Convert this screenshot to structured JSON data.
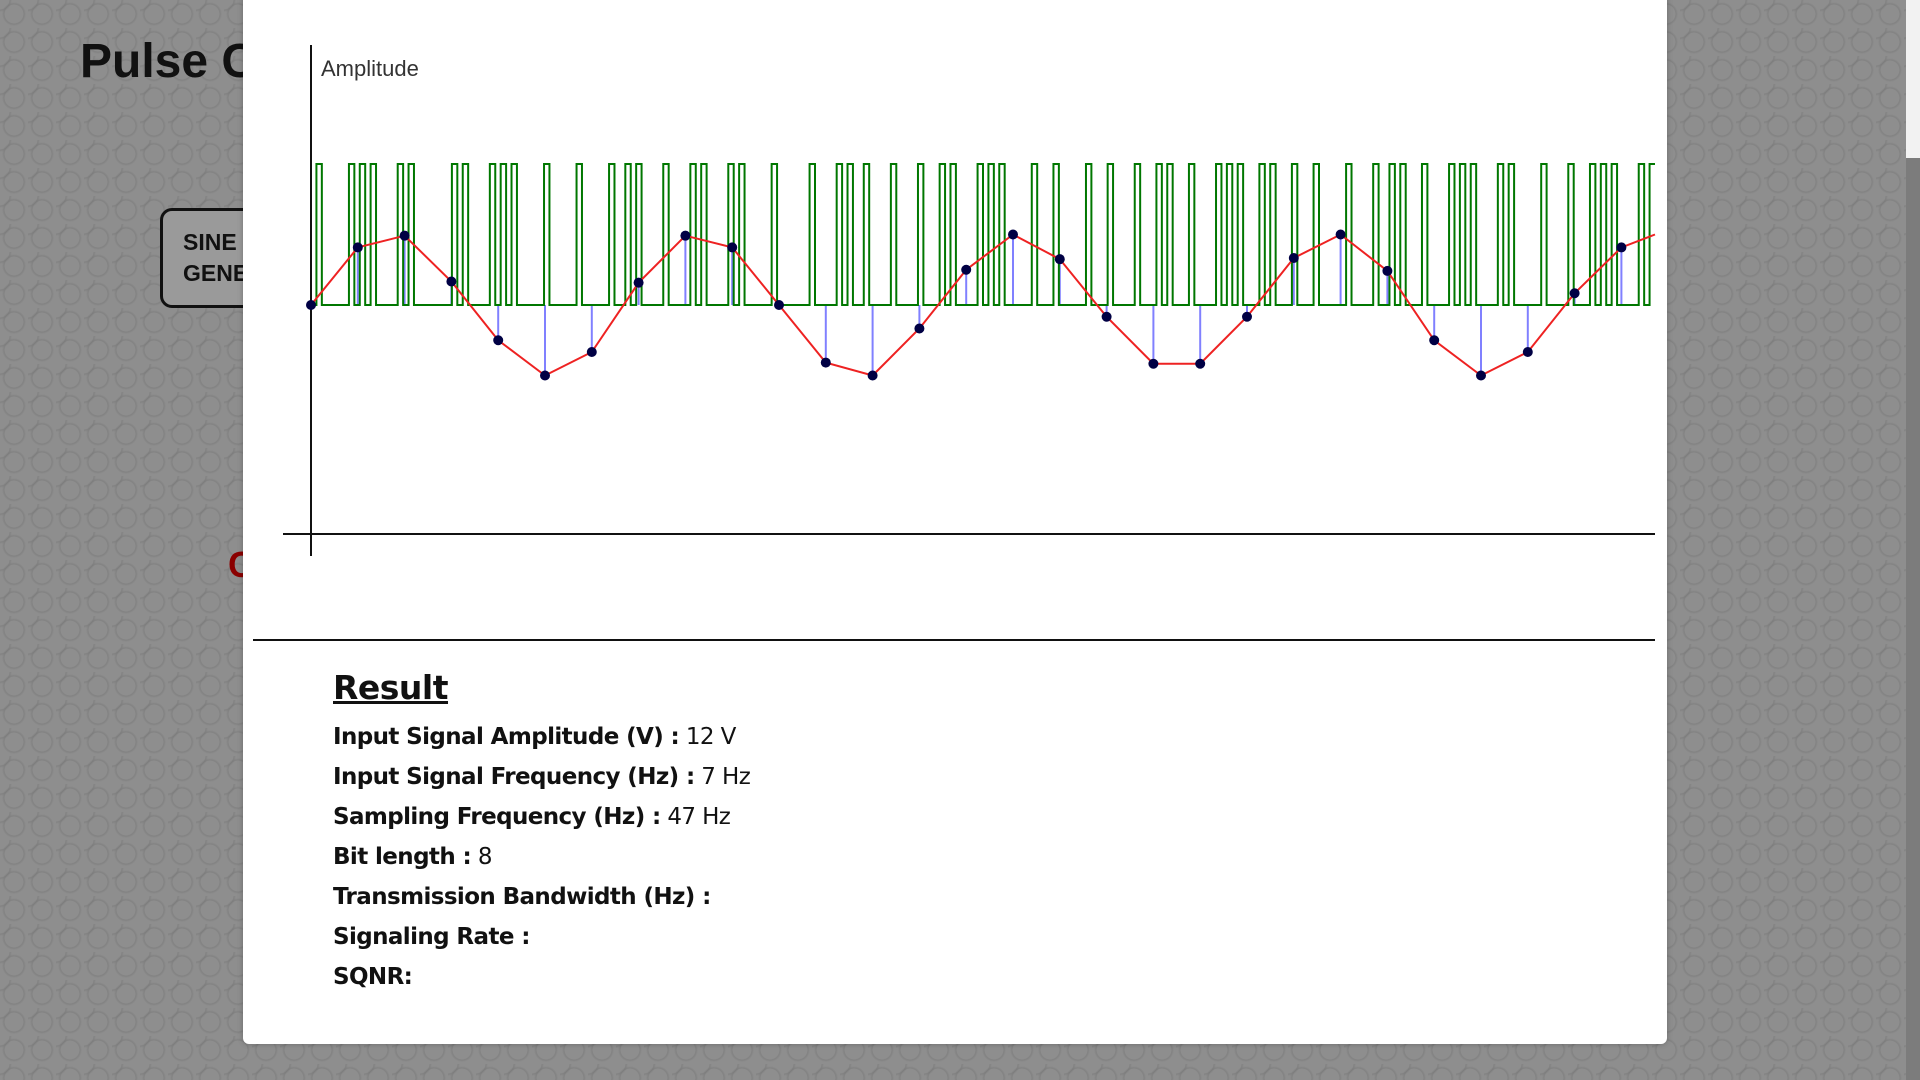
{
  "page": {
    "title": "Pulse C",
    "gen_button": {
      "line1": "SINE",
      "line2": "GENE"
    },
    "red_glyph": "C"
  },
  "colors": {
    "pcm_wave": "#007700",
    "sine_curve": "#ee2222",
    "sample_stem": "#8080ff",
    "sample_dot": "#000044",
    "axis": "#111111"
  },
  "chart_data": {
    "type": "line",
    "ylabel": "Amplitude",
    "ylim": [
      -12,
      12
    ],
    "grid": false,
    "series": [
      {
        "kind": "sampled",
        "values": [
          0,
          4.9,
          5.9,
          2.0,
          -3.0,
          -6.0,
          -4.0,
          1.9,
          5.9,
          4.9,
          0,
          -4.9,
          -6.0,
          -2.0,
          3.0,
          6.0,
          3.9,
          -1.0,
          -5.0,
          -5.0,
          -1.0,
          4.0,
          6.0,
          2.9,
          -3.0,
          -6.0,
          -4.0,
          1.0,
          4.9
        ]
      },
      {
        "kind": "pcm-bits",
        "high": 12,
        "bits": [
          0,
          1,
          0,
          0,
          0,
          0,
          0,
          1,
          0,
          1,
          0,
          1,
          0,
          0,
          0,
          0,
          1,
          0,
          1,
          0,
          0,
          0,
          0,
          0,
          0,
          0,
          1,
          0,
          1,
          0,
          0,
          0,
          0,
          1,
          0,
          1,
          0,
          1,
          0,
          0,
          0,
          0,
          0,
          1,
          0,
          0,
          0,
          0,
          0,
          1,
          0,
          0,
          0,
          0,
          0,
          1,
          0,
          0,
          1,
          0,
          1,
          0,
          0,
          0,
          0,
          1,
          0,
          0,
          0,
          0,
          1,
          0,
          1,
          0,
          0,
          0,
          0,
          1,
          0,
          1,
          0,
          0,
          0,
          0,
          0,
          1,
          0,
          0,
          0,
          0,
          0,
          0,
          1,
          0,
          0,
          0,
          0,
          1,
          0,
          1,
          0,
          0,
          1,
          0,
          0,
          0,
          0,
          1,
          0,
          0,
          0,
          0,
          1,
          0,
          0,
          0,
          1,
          0,
          1,
          0,
          0,
          0,
          0,
          1,
          0,
          1,
          0,
          1,
          0,
          0,
          0,
          0,
          0,
          1,
          0,
          0,
          0,
          1,
          0,
          0,
          0,
          0,
          0,
          1,
          0,
          0,
          0,
          1,
          0,
          0,
          0,
          0,
          1,
          0,
          0,
          0,
          1,
          0,
          1,
          0,
          0,
          0,
          1,
          0,
          0,
          0,
          0,
          1,
          0,
          1,
          0,
          1,
          0,
          0,
          0,
          1,
          0,
          1,
          0,
          0,
          0,
          1,
          0,
          0,
          0,
          1,
          0,
          0,
          0,
          0,
          0,
          1,
          0,
          0,
          0,
          0,
          1,
          0,
          0,
          1,
          0,
          1,
          0,
          0,
          0,
          1,
          0,
          0,
          0,
          0,
          1,
          0,
          1,
          0,
          1,
          0,
          0,
          0,
          0,
          1,
          0,
          1,
          0,
          0,
          0,
          0,
          0,
          1,
          0,
          0,
          0,
          0,
          1,
          0,
          0,
          0,
          1,
          0,
          1,
          0,
          1,
          0,
          0,
          0,
          0,
          1,
          0,
          1
        ]
      }
    ]
  },
  "result": {
    "heading": "Result",
    "rows": [
      {
        "label": "Input Signal Amplitude (V) :",
        "value": " 12 V"
      },
      {
        "label": "Input Signal Frequency (Hz) :",
        "value": " 7 Hz"
      },
      {
        "label": "Sampling Frequency (Hz) :",
        "value": " 47 Hz"
      },
      {
        "label": "Bit length :",
        "value": " 8"
      },
      {
        "label": "Transmission Bandwidth (Hz) :",
        "value": ""
      },
      {
        "label": "Signaling Rate :",
        "value": ""
      },
      {
        "label": "SQNR:",
        "value": ""
      }
    ]
  }
}
